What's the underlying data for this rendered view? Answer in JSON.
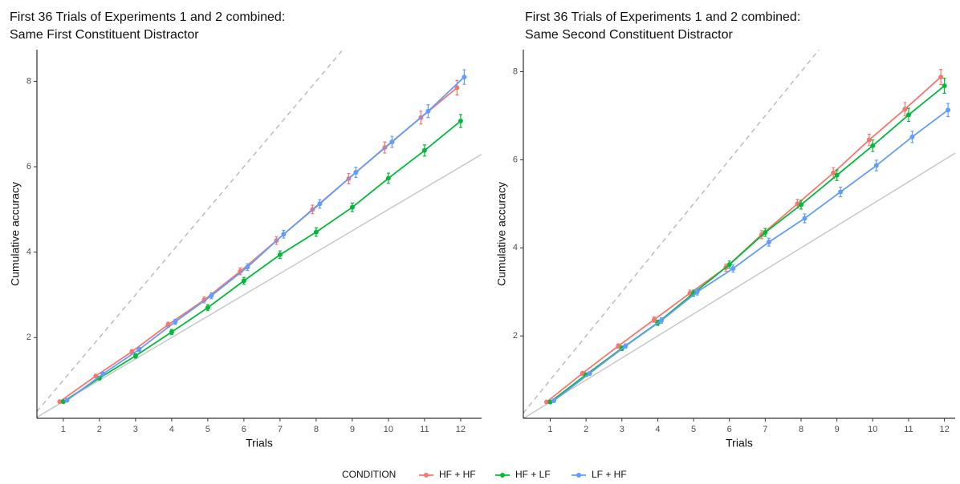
{
  "chart_data": [
    {
      "type": "line",
      "title": "First 36 Trials of Experiments 1 and 2 combined:",
      "subtitle": "Same First Constituent Distractor",
      "x_label": "Trials",
      "y_label": "Cumulative accuracy",
      "x": [
        1,
        2,
        3,
        4,
        5,
        6,
        7,
        8,
        9,
        10,
        11,
        12
      ],
      "xlim": [
        0.27,
        12.58
      ],
      "ylim": [
        0.11,
        8.74
      ],
      "xticks": [
        1,
        2,
        3,
        4,
        5,
        6,
        7,
        8,
        9,
        10,
        11,
        12
      ],
      "yticks": [
        2,
        4,
        6,
        8
      ],
      "reference_lines": [
        {
          "slope": 1,
          "style": "dashed"
        },
        {
          "slope": 0.5,
          "style": "solid"
        }
      ],
      "series": [
        {
          "name": "HF + HF",
          "color": "#F8766D",
          "values": [
            0.5,
            1.1,
            1.67,
            2.3,
            2.88,
            3.55,
            4.27,
            5.0,
            5.72,
            6.45,
            7.15,
            7.85
          ],
          "errors": [
            0.03,
            0.04,
            0.05,
            0.06,
            0.07,
            0.08,
            0.09,
            0.1,
            0.12,
            0.13,
            0.15,
            0.17
          ]
        },
        {
          "name": "HF + LF",
          "color": "#00BA38",
          "values": [
            0.5,
            1.05,
            1.57,
            2.13,
            2.7,
            3.33,
            3.94,
            4.47,
            5.05,
            5.73,
            6.38,
            7.07
          ],
          "errors": [
            0.03,
            0.04,
            0.05,
            0.06,
            0.07,
            0.08,
            0.09,
            0.1,
            0.1,
            0.12,
            0.13,
            0.15
          ]
        },
        {
          "name": "LF + HF",
          "color": "#619CFF",
          "values": [
            0.53,
            1.15,
            1.72,
            2.37,
            2.98,
            3.65,
            4.42,
            5.13,
            5.87,
            6.58,
            7.3,
            8.1
          ],
          "errors": [
            0.03,
            0.04,
            0.05,
            0.06,
            0.07,
            0.08,
            0.09,
            0.1,
            0.12,
            0.13,
            0.15,
            0.17
          ]
        }
      ]
    },
    {
      "type": "line",
      "title": "First 36 Trials of Experiments 1 and 2 combined:",
      "subtitle": "Same Second Constituent Distractor",
      "x_label": "Trials",
      "y_label": "Cumulative accuracy",
      "x": [
        1,
        2,
        3,
        4,
        5,
        6,
        7,
        8,
        9,
        10,
        11,
        12
      ],
      "xlim": [
        0.25,
        12.3
      ],
      "ylim": [
        0.13,
        8.5
      ],
      "xticks": [
        1,
        2,
        3,
        4,
        5,
        6,
        7,
        8,
        9,
        10,
        11,
        12
      ],
      "yticks": [
        2,
        4,
        6,
        8
      ],
      "reference_lines": [
        {
          "slope": 1,
          "style": "dashed"
        },
        {
          "slope": 0.5,
          "style": "solid"
        }
      ],
      "series": [
        {
          "color": "#F8766D",
          "values": [
            0.5,
            1.15,
            1.77,
            2.37,
            2.97,
            3.55,
            4.3,
            5.0,
            5.7,
            6.45,
            7.15,
            7.88
          ],
          "errors": [
            0.03,
            0.04,
            0.05,
            0.06,
            0.07,
            0.08,
            0.09,
            0.1,
            0.12,
            0.13,
            0.15,
            0.17
          ]
        },
        {
          "color": "#00BA38",
          "values": [
            0.5,
            1.12,
            1.72,
            2.3,
            2.97,
            3.62,
            4.35,
            4.98,
            5.65,
            6.32,
            7.02,
            7.68
          ],
          "errors": [
            0.03,
            0.04,
            0.05,
            0.06,
            0.07,
            0.08,
            0.09,
            0.1,
            0.12,
            0.13,
            0.15,
            0.17
          ]
        },
        {
          "color": "#619CFF",
          "values": [
            0.53,
            1.15,
            1.77,
            2.35,
            3.0,
            3.53,
            4.13,
            4.67,
            5.27,
            5.87,
            6.52,
            7.13
          ],
          "errors": [
            0.03,
            0.04,
            0.05,
            0.06,
            0.07,
            0.08,
            0.09,
            0.1,
            0.11,
            0.12,
            0.13,
            0.15
          ]
        }
      ]
    }
  ],
  "legend": {
    "title": "CONDITION",
    "position": "bottom"
  }
}
